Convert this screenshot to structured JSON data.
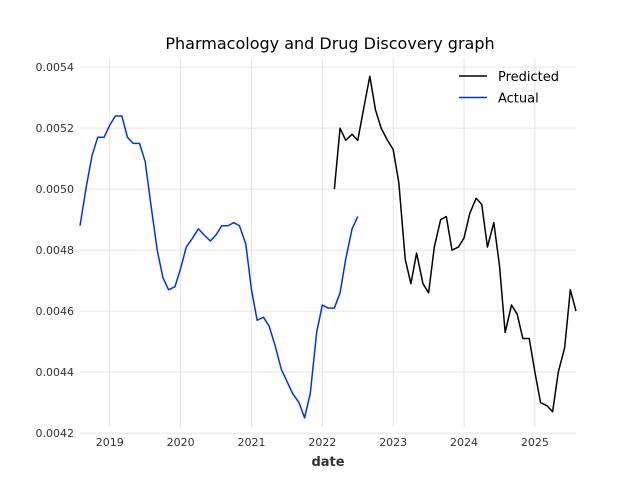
{
  "chart_data": {
    "type": "line",
    "title": "Pharmacology and Drug Discovery graph",
    "xlabel": "date",
    "ylabel": "",
    "xlim": [
      2018.58,
      2025.58
    ],
    "ylim": [
      0.00422,
      0.00543
    ],
    "x_ticks": [
      {
        "value": 2019,
        "label": "2019"
      },
      {
        "value": 2020,
        "label": "2020"
      },
      {
        "value": 2021,
        "label": "2021"
      },
      {
        "value": 2022,
        "label": "2022"
      },
      {
        "value": 2023,
        "label": "2023"
      },
      {
        "value": 2024,
        "label": "2024"
      },
      {
        "value": 2025,
        "label": "2025"
      }
    ],
    "y_ticks": [
      {
        "value": 0.0042,
        "label": "0.0042"
      },
      {
        "value": 0.0044,
        "label": "0.0044"
      },
      {
        "value": 0.0046,
        "label": "0.0046"
      },
      {
        "value": 0.0048,
        "label": "0.0048"
      },
      {
        "value": 0.005,
        "label": "0.0050"
      },
      {
        "value": 0.0052,
        "label": "0.0052"
      },
      {
        "value": 0.0054,
        "label": "0.0054"
      }
    ],
    "grid": true,
    "legend_position": "top-right",
    "series": [
      {
        "name": "Predicted",
        "color": "#000000",
        "points": [
          [
            2022.17,
            0.005
          ],
          [
            2022.25,
            0.0052
          ],
          [
            2022.33,
            0.00516
          ],
          [
            2022.42,
            0.00518
          ],
          [
            2022.5,
            0.00516
          ],
          [
            2022.58,
            0.00526
          ],
          [
            2022.67,
            0.00537
          ],
          [
            2022.75,
            0.00526
          ],
          [
            2022.83,
            0.0052
          ],
          [
            2022.92,
            0.00516
          ],
          [
            2023.0,
            0.00513
          ],
          [
            2023.08,
            0.00502
          ],
          [
            2023.17,
            0.00477
          ],
          [
            2023.25,
            0.00469
          ],
          [
            2023.33,
            0.00479
          ],
          [
            2023.42,
            0.00469
          ],
          [
            2023.5,
            0.00466
          ],
          [
            2023.58,
            0.00481
          ],
          [
            2023.67,
            0.0049
          ],
          [
            2023.75,
            0.00491
          ],
          [
            2023.83,
            0.0048
          ],
          [
            2023.92,
            0.00481
          ],
          [
            2024.0,
            0.00484
          ],
          [
            2024.08,
            0.00492
          ],
          [
            2024.17,
            0.00497
          ],
          [
            2024.25,
            0.00495
          ],
          [
            2024.33,
            0.00481
          ],
          [
            2024.42,
            0.00489
          ],
          [
            2024.5,
            0.00475
          ],
          [
            2024.58,
            0.00453
          ],
          [
            2024.67,
            0.00462
          ],
          [
            2024.75,
            0.00459
          ],
          [
            2024.83,
            0.00451
          ],
          [
            2024.92,
            0.00451
          ],
          [
            2025.0,
            0.0044
          ],
          [
            2025.08,
            0.0043
          ],
          [
            2025.17,
            0.00429
          ],
          [
            2025.25,
            0.00427
          ],
          [
            2025.33,
            0.0044
          ],
          [
            2025.42,
            0.00448
          ],
          [
            2025.5,
            0.00467
          ],
          [
            2025.58,
            0.0046
          ]
        ]
      },
      {
        "name": "Actual",
        "color": "#0033e6",
        "points": [
          [
            2018.58,
            0.00488
          ],
          [
            2018.67,
            0.00501
          ],
          [
            2018.75,
            0.00511
          ],
          [
            2018.83,
            0.00517
          ],
          [
            2018.92,
            0.00517
          ],
          [
            2019.0,
            0.00521
          ],
          [
            2019.08,
            0.00524
          ],
          [
            2019.17,
            0.00524
          ],
          [
            2019.25,
            0.00517
          ],
          [
            2019.33,
            0.00515
          ],
          [
            2019.42,
            0.00515
          ],
          [
            2019.5,
            0.00509
          ],
          [
            2019.58,
            0.00495
          ],
          [
            2019.67,
            0.0048
          ],
          [
            2019.75,
            0.00471
          ],
          [
            2019.83,
            0.00467
          ],
          [
            2019.92,
            0.00468
          ],
          [
            2020.0,
            0.00474
          ],
          [
            2020.08,
            0.00481
          ],
          [
            2020.17,
            0.00484
          ],
          [
            2020.25,
            0.00487
          ],
          [
            2020.33,
            0.00485
          ],
          [
            2020.42,
            0.00483
          ],
          [
            2020.5,
            0.00485
          ],
          [
            2020.58,
            0.00488
          ],
          [
            2020.67,
            0.00488
          ],
          [
            2020.75,
            0.00489
          ],
          [
            2020.83,
            0.00488
          ],
          [
            2020.92,
            0.00482
          ],
          [
            2021.0,
            0.00467
          ],
          [
            2021.08,
            0.00457
          ],
          [
            2021.17,
            0.00458
          ],
          [
            2021.25,
            0.00455
          ],
          [
            2021.33,
            0.00449
          ],
          [
            2021.42,
            0.00441
          ],
          [
            2021.5,
            0.00437
          ],
          [
            2021.58,
            0.00433
          ],
          [
            2021.67,
            0.0043
          ],
          [
            2021.75,
            0.00425
          ],
          [
            2021.83,
            0.00433
          ],
          [
            2021.92,
            0.00453
          ],
          [
            2022.0,
            0.00462
          ],
          [
            2022.08,
            0.00461
          ],
          [
            2022.17,
            0.00461
          ],
          [
            2022.25,
            0.00466
          ],
          [
            2022.33,
            0.00477
          ],
          [
            2022.42,
            0.00487
          ],
          [
            2022.5,
            0.00491
          ]
        ]
      }
    ]
  }
}
